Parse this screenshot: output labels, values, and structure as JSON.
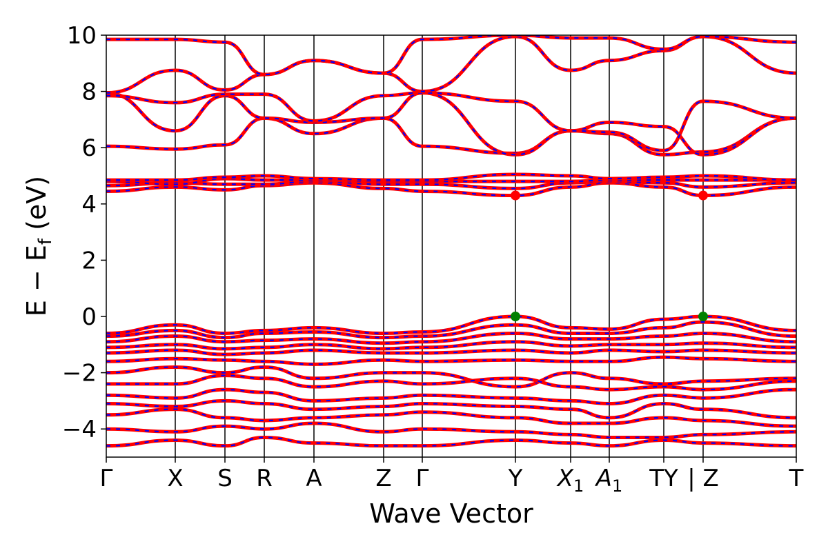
{
  "chart_data": {
    "type": "line",
    "xlabel": "Wave Vector",
    "ylabel_main": "E − E",
    "ylabel_sub": "f",
    "ylabel_unit": " (eV)",
    "ylim": [
      -5,
      10
    ],
    "yticks": [
      {
        "value": 10,
        "label": "10"
      },
      {
        "value": 8,
        "label": "8"
      },
      {
        "value": 6,
        "label": "6"
      },
      {
        "value": 4,
        "label": "4"
      },
      {
        "value": 2,
        "label": "2"
      },
      {
        "value": 0,
        "label": "0"
      },
      {
        "value": -2,
        "label": "−2"
      },
      {
        "value": -4,
        "label": "−4"
      }
    ],
    "kpath": [
      {
        "label": "Γ",
        "sub": "",
        "x": 0.0
      },
      {
        "label": "X",
        "sub": "",
        "x": 0.1
      },
      {
        "label": "S",
        "sub": "",
        "x": 0.172
      },
      {
        "label": "R",
        "sub": "",
        "x": 0.229
      },
      {
        "label": "A",
        "sub": "",
        "x": 0.301
      },
      {
        "label": "Z",
        "sub": "",
        "x": 0.402
      },
      {
        "label": "Γ",
        "sub": "",
        "x": 0.458
      },
      {
        "label": "Y",
        "sub": "",
        "x": 0.593
      },
      {
        "label": "X",
        "sub": "1",
        "x": 0.673
      },
      {
        "label": "A",
        "sub": "1",
        "x": 0.729
      },
      {
        "label": "TY",
        "sub": "",
        "x": 0.808
      },
      {
        "label": "| Z",
        "sub": "",
        "x": 0.865
      },
      {
        "label": "T",
        "sub": "",
        "x": 1.0
      }
    ],
    "series": [
      {
        "values": [
          -0.6,
          -0.3,
          -0.6,
          -0.5,
          -0.4,
          -0.6,
          -0.55,
          0.0,
          -0.4,
          -0.45,
          -0.1,
          0.0,
          -0.5,
          -0.05
        ]
      },
      {
        "values": [
          -0.7,
          -0.5,
          -0.75,
          -0.6,
          -0.55,
          -0.75,
          -0.7,
          -0.3,
          -0.6,
          -0.6,
          -0.4,
          -0.2,
          -0.7,
          -0.3
        ]
      },
      {
        "values": [
          -0.9,
          -0.7,
          -0.9,
          -0.85,
          -0.8,
          -0.95,
          -0.9,
          -0.6,
          -0.8,
          -0.8,
          -0.7,
          -0.6,
          -0.9,
          -0.6
        ]
      },
      {
        "values": [
          -1.1,
          -1.0,
          -1.15,
          -1.1,
          -1.0,
          -1.15,
          -1.1,
          -0.9,
          -1.05,
          -1.0,
          -1.0,
          -0.95,
          -1.1,
          -0.9
        ]
      },
      {
        "values": [
          -1.3,
          -1.2,
          -1.35,
          -1.3,
          -1.2,
          -1.3,
          -1.3,
          -1.2,
          -1.3,
          -1.2,
          -1.25,
          -1.2,
          -1.3,
          -1.1
        ]
      },
      {
        "values": [
          -1.6,
          -1.5,
          -1.55,
          -1.6,
          -1.7,
          -1.55,
          -1.6,
          -1.55,
          -1.6,
          -1.6,
          -1.45,
          -1.5,
          -1.6,
          -1.4
        ]
      },
      {
        "values": [
          -2.0,
          -1.8,
          -2.0,
          -1.8,
          -2.2,
          -2.0,
          -2.0,
          -2.5,
          -2.0,
          -2.2,
          -2.4,
          -2.3,
          -2.2,
          -2.4
        ]
      },
      {
        "values": [
          -2.4,
          -2.4,
          -2.1,
          -2.2,
          -2.5,
          -2.3,
          -2.4,
          -2.2,
          -2.5,
          -2.6,
          -2.5,
          -2.6,
          -2.3,
          -2.5
        ]
      },
      {
        "values": [
          -2.8,
          -2.9,
          -2.6,
          -2.7,
          -3.0,
          -2.9,
          -2.8,
          -2.9,
          -3.0,
          -3.1,
          -2.8,
          -2.9,
          -2.6,
          -3.2
        ]
      },
      {
        "values": [
          -3.1,
          -3.2,
          -3.0,
          -3.1,
          -3.3,
          -3.2,
          -3.1,
          -3.2,
          -3.3,
          -3.6,
          -3.1,
          -3.3,
          -3.6,
          -3.5
        ]
      },
      {
        "values": [
          -3.5,
          -3.3,
          -3.6,
          -3.7,
          -3.6,
          -3.5,
          -3.4,
          -3.6,
          -3.8,
          -3.8,
          -3.6,
          -3.7,
          -3.9,
          -3.7
        ]
      },
      {
        "values": [
          -4.0,
          -4.1,
          -3.9,
          -4.0,
          -3.8,
          -4.1,
          -4.0,
          -4.1,
          -4.2,
          -4.3,
          -4.3,
          -4.2,
          -4.1,
          -4.3
        ]
      },
      {
        "values": [
          -4.6,
          -4.4,
          -4.6,
          -4.3,
          -4.5,
          -4.6,
          -4.6,
          -4.4,
          -4.5,
          -4.6,
          -4.4,
          -4.5,
          -4.6,
          -4.4
        ]
      },
      {
        "values": [
          4.45,
          4.6,
          4.5,
          4.65,
          4.75,
          4.55,
          4.45,
          4.3,
          4.6,
          4.75,
          4.6,
          4.3,
          4.6,
          4.55
        ]
      },
      {
        "values": [
          4.65,
          4.75,
          4.7,
          4.7,
          4.8,
          4.7,
          4.7,
          4.55,
          4.75,
          4.8,
          4.75,
          4.6,
          4.75,
          4.7
        ]
      },
      {
        "values": [
          4.8,
          4.7,
          4.9,
          4.85,
          4.85,
          4.8,
          4.8,
          4.8,
          4.8,
          4.85,
          4.85,
          4.85,
          4.85,
          4.85
        ]
      },
      {
        "values": [
          4.85,
          4.85,
          4.95,
          5.0,
          4.9,
          4.85,
          4.85,
          5.05,
          5.0,
          4.9,
          4.95,
          5.0,
          4.85,
          4.9
        ]
      },
      {
        "values": [
          6.05,
          5.95,
          6.1,
          7.05,
          6.5,
          7.05,
          6.05,
          5.8,
          6.6,
          6.5,
          5.75,
          5.85,
          7.05,
          5.75
        ]
      },
      {
        "values": [
          7.95,
          6.6,
          7.85,
          7.05,
          6.9,
          7.05,
          7.95,
          5.75,
          6.6,
          6.9,
          6.75,
          5.75,
          7.05,
          6.8
        ]
      },
      {
        "values": [
          7.85,
          7.6,
          7.9,
          7.9,
          6.95,
          7.85,
          7.95,
          7.65,
          6.6,
          6.55,
          5.9,
          7.65,
          7.05,
          6.8
        ]
      },
      {
        "values": [
          7.95,
          8.75,
          8.05,
          8.6,
          9.1,
          8.65,
          8.0,
          9.95,
          8.75,
          9.1,
          9.45,
          9.95,
          8.65,
          9.45
        ]
      },
      {
        "values": [
          9.85,
          9.85,
          9.75,
          8.6,
          9.1,
          8.65,
          9.85,
          10.0,
          9.9,
          9.9,
          9.5,
          9.95,
          9.75,
          9.5
        ]
      }
    ],
    "markers": [
      {
        "x": 0.593,
        "y": 4.3,
        "color": "#ff0000"
      },
      {
        "x": 0.865,
        "y": 4.3,
        "color": "#ff0000"
      },
      {
        "x": 0.593,
        "y": 0.0,
        "color": "#008000"
      },
      {
        "x": 0.865,
        "y": 0.0,
        "color": "#008000"
      }
    ],
    "colors": {
      "band": "#ff0000",
      "band_dash": "#0000ff",
      "axis": "#000000"
    }
  }
}
